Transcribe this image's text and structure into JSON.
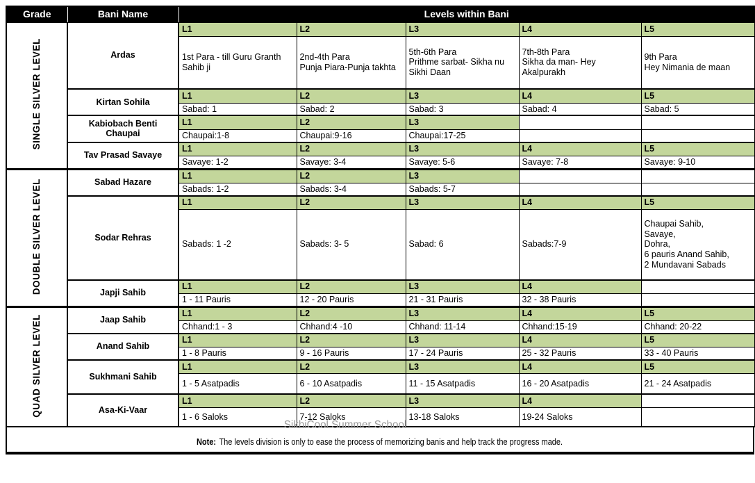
{
  "header": {
    "grade": "Grade",
    "bani_name": "Bani Name",
    "levels_title": "Levels within Bani"
  },
  "colors": {
    "level_header_bg": "#c3d69b",
    "top_header_bg": "#000000",
    "top_header_text": "#ffffff",
    "watermark_text_color": "#9a9a9a",
    "border_color": "#000000"
  },
  "sections": [
    {
      "grade": "SINGLE SILVER LEVEL",
      "banis": [
        {
          "name": "Ardas",
          "levels": [
            {
              "label": "L1",
              "value": "1st Para - till Guru Granth Sahib ji"
            },
            {
              "label": "L2",
              "value": "2nd-4th Para\nPunja Piara-Punja takhta"
            },
            {
              "label": "L3",
              "value": "5th-6th Para\nPrithme sarbat- Sikha nu Sikhi Daan"
            },
            {
              "label": "L4",
              "value": "7th-8th Para\nSikha da man- Hey Akalpurakh"
            },
            {
              "label": "L5",
              "value": "9th Para\nHey Nimania de maan"
            }
          ]
        },
        {
          "name": "Kirtan Sohila",
          "levels": [
            {
              "label": "L1",
              "value": "Sabad: 1"
            },
            {
              "label": "L2",
              "value": "Sabad: 2"
            },
            {
              "label": "L3",
              "value": "Sabad: 3"
            },
            {
              "label": "L4",
              "value": "Sabad: 4"
            },
            {
              "label": "L5",
              "value": "Sabad: 5"
            }
          ]
        },
        {
          "name": "Kabiobach Benti Chaupai",
          "levels": [
            {
              "label": "L1",
              "value": "Chaupai:1-8"
            },
            {
              "label": "L2",
              "value": "Chaupai:9-16"
            },
            {
              "label": "L3",
              "value": "Chaupai:17-25"
            }
          ]
        },
        {
          "name": "Tav Prasad Savaye",
          "levels": [
            {
              "label": "L1",
              "value": "Savaye: 1-2"
            },
            {
              "label": "L2",
              "value": "Savaye: 3-4"
            },
            {
              "label": "L3",
              "value": "Savaye: 5-6"
            },
            {
              "label": "L4",
              "value": "Savaye: 7-8"
            },
            {
              "label": "L5",
              "value": "Savaye: 9-10"
            }
          ]
        }
      ]
    },
    {
      "grade": "DOUBLE SILVER LEVEL",
      "banis": [
        {
          "name": "Sabad Hazare",
          "levels": [
            {
              "label": "L1",
              "value": "Sabads: 1-2"
            },
            {
              "label": "L2",
              "value": "Sabads: 3-4"
            },
            {
              "label": "L3",
              "value": "Sabads: 5-7"
            }
          ]
        },
        {
          "name": "Sodar Rehras",
          "levels": [
            {
              "label": "L1",
              "value": "Sabads: 1 -2"
            },
            {
              "label": "L2",
              "value": "Sabads: 3- 5"
            },
            {
              "label": "L3",
              "value": "Sabad: 6"
            },
            {
              "label": "L4",
              "value": "Sabads:7-9"
            },
            {
              "label": "L5",
              "value": "Chaupai Sahib,\nSavaye,\nDohra,\n6 pauris Anand Sahib,\n2 Mundavani Sabads"
            }
          ]
        },
        {
          "name": "Japji Sahib",
          "levels": [
            {
              "label": "L1",
              "value": "1 - 11 Pauris"
            },
            {
              "label": "L2",
              "value": "12 - 20 Pauris"
            },
            {
              "label": "L3",
              "value": "21 - 31 Pauris"
            },
            {
              "label": "L4",
              "value": "32 - 38 Pauris"
            }
          ]
        }
      ]
    },
    {
      "grade": "QUAD SILVER LEVEL",
      "banis": [
        {
          "name": "Jaap Sahib",
          "levels": [
            {
              "label": "L1",
              "value": "Chhand:1 - 3"
            },
            {
              "label": "L2",
              "value": "Chhand:4 -10"
            },
            {
              "label": "L3",
              "value": "Chhand: 11-14"
            },
            {
              "label": "L4",
              "value": "Chhand:15-19"
            },
            {
              "label": "L5",
              "value": "Chhand: 20-22"
            }
          ]
        },
        {
          "name": "Anand Sahib",
          "levels": [
            {
              "label": "L1",
              "value": "1 - 8 Pauris"
            },
            {
              "label": "L2",
              "value": "9 - 16 Pauris"
            },
            {
              "label": "L3",
              "value": "17 - 24 Pauris"
            },
            {
              "label": "L4",
              "value": "25 - 32 Pauris"
            },
            {
              "label": "L5",
              "value": "33 - 40 Pauris"
            }
          ]
        },
        {
          "name": "Sukhmani Sahib",
          "levels": [
            {
              "label": "L1",
              "value": "1 - 5 Asatpadis"
            },
            {
              "label": "L2",
              "value": "6 - 10 Asatpadis"
            },
            {
              "label": "L3",
              "value": "11 - 15 Asatpadis"
            },
            {
              "label": "L4",
              "value": "16 - 20 Asatpadis"
            },
            {
              "label": "L5",
              "value": "21 - 24 Asatpadis"
            }
          ]
        },
        {
          "name": "Asa-Ki-Vaar",
          "levels": [
            {
              "label": "L1",
              "value": "1 - 6 Saloks"
            },
            {
              "label": "L2",
              "value": "7-12 Saloks"
            },
            {
              "label": "L3",
              "value": "13-18 Saloks"
            },
            {
              "label": "L4",
              "value": "19-24 Saloks"
            }
          ]
        }
      ]
    }
  ],
  "footer": {
    "watermark": "SikhiCool Summer School",
    "note_label": "Note:",
    "note_text": "The levels division is only to ease the process of memorizing banis and help track the progress made."
  }
}
